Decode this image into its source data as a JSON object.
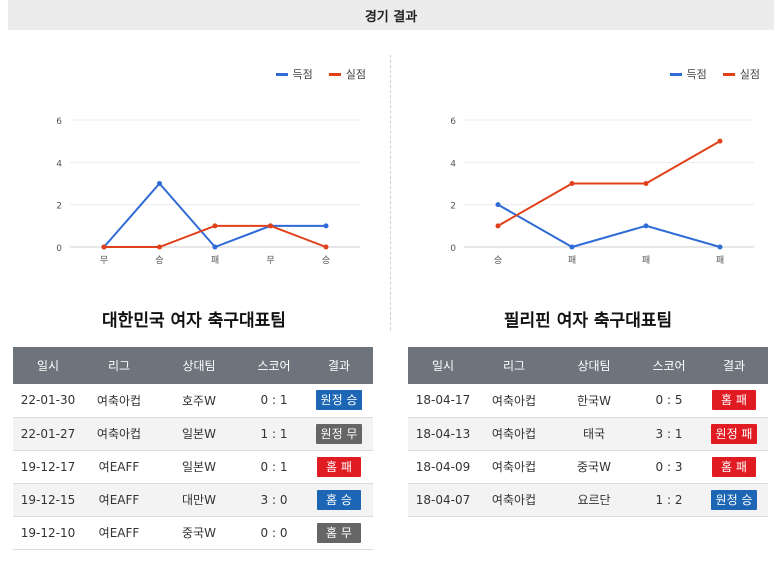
{
  "header": {
    "title": "경기 결과"
  },
  "legend": {
    "scored_label": "득점",
    "conceded_label": "실점",
    "scored_color": "#2f6bd6",
    "conceded_color": "#e0401a"
  },
  "left": {
    "team_title": "대한민국 여자 축구대표팀",
    "chart_data": {
      "type": "line",
      "categories": [
        "무",
        "승",
        "패",
        "무",
        "승"
      ],
      "ylim": [
        0,
        6
      ],
      "yticks": [
        0,
        2,
        4,
        6
      ],
      "grid": true,
      "legend": "top-right",
      "series": [
        {
          "name": "득점",
          "values": [
            0,
            3,
            0,
            1,
            1
          ],
          "color": "#2f6bd6"
        },
        {
          "name": "실점",
          "values": [
            0,
            0,
            1,
            1,
            0
          ],
          "color": "#e0401a"
        }
      ]
    },
    "table": {
      "headers": [
        "일시",
        "리그",
        "상대팀",
        "스코어",
        "결과"
      ],
      "rows": [
        {
          "date": "22-01-30",
          "league": "여축아컵",
          "opponent": "호주W",
          "score": "0 : 1",
          "result": "원정 승",
          "kind": "win"
        },
        {
          "date": "22-01-27",
          "league": "여축아컵",
          "opponent": "일본W",
          "score": "1 : 1",
          "result": "원정 무",
          "kind": "draw"
        },
        {
          "date": "19-12-17",
          "league": "여EAFF",
          "opponent": "일본W",
          "score": "0 : 1",
          "result": "홈 패",
          "kind": "lose"
        },
        {
          "date": "19-12-15",
          "league": "여EAFF",
          "opponent": "대만W",
          "score": "3 : 0",
          "result": "홈 승",
          "kind": "win"
        },
        {
          "date": "19-12-10",
          "league": "여EAFF",
          "opponent": "중국W",
          "score": "0 : 0",
          "result": "홈 무",
          "kind": "draw"
        }
      ]
    }
  },
  "right": {
    "team_title": "필리핀 여자 축구대표팀",
    "chart_data": {
      "type": "line",
      "categories": [
        "승",
        "패",
        "패",
        "패"
      ],
      "ylim": [
        0,
        6
      ],
      "yticks": [
        0,
        2,
        4,
        6
      ],
      "grid": true,
      "legend": "top-right",
      "series": [
        {
          "name": "득점",
          "values": [
            2,
            0,
            1,
            0
          ],
          "color": "#2f6bd6"
        },
        {
          "name": "실점",
          "values": [
            1,
            3,
            3,
            5
          ],
          "color": "#e0401a"
        }
      ]
    },
    "table": {
      "headers": [
        "일시",
        "리그",
        "상대팀",
        "스코어",
        "결과"
      ],
      "rows": [
        {
          "date": "18-04-17",
          "league": "여축아컵",
          "opponent": "한국W",
          "score": "0 : 5",
          "result": "홈 패",
          "kind": "lose"
        },
        {
          "date": "18-04-13",
          "league": "여축아컵",
          "opponent": "태국",
          "score": "3 : 1",
          "result": "원정 패",
          "kind": "lose"
        },
        {
          "date": "18-04-09",
          "league": "여축아컵",
          "opponent": "중국W",
          "score": "0 : 3",
          "result": "홈 패",
          "kind": "lose"
        },
        {
          "date": "18-04-07",
          "league": "여축아컵",
          "opponent": "요르단",
          "score": "1 : 2",
          "result": "원정 승",
          "kind": "win"
        }
      ]
    }
  }
}
